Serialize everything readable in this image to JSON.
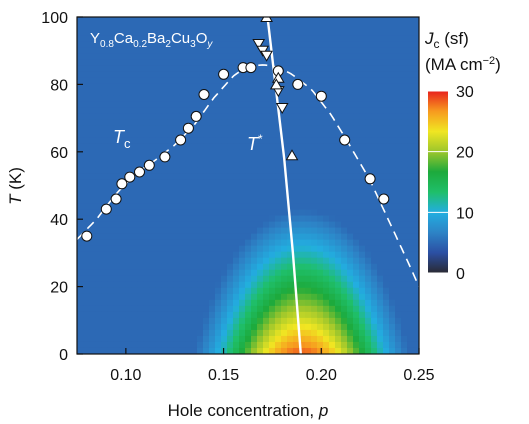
{
  "chart_data": {
    "type": "heatmap",
    "title": "",
    "xlabel_prefix": "Hole concentration, ",
    "xlabel_var": "p",
    "ylabel_var": "T",
    "ylabel_unit": " (K)",
    "xlim": [
      0.075,
      0.25
    ],
    "ylim": [
      0,
      100
    ],
    "x_ticks": [
      "0.10",
      "0.15",
      "0.20",
      "0.25"
    ],
    "y_ticks": [
      "0",
      "20",
      "40",
      "60",
      "80",
      "100"
    ],
    "compound": {
      "parts": [
        {
          "t": "Y",
          "sub": false
        },
        {
          "t": "0.8",
          "sub": true
        },
        {
          "t": "Ca",
          "sub": false
        },
        {
          "t": "0.2",
          "sub": true
        },
        {
          "t": "Ba",
          "sub": false
        },
        {
          "t": "2",
          "sub": true
        },
        {
          "t": "Cu",
          "sub": false
        },
        {
          "t": "3",
          "sub": true
        },
        {
          "t": "O",
          "sub": false
        },
        {
          "t": "y",
          "sub": true
        }
      ]
    },
    "tc_label": {
      "main": "T",
      "sub": "c"
    },
    "tstar_label": {
      "main": "T",
      "sup": "*"
    },
    "colorbar": {
      "title_line1_main": "J",
      "title_line1_sub": "c",
      "title_line1_rest": " (sf)",
      "title_line2_pre": "(MA cm",
      "title_line2_sup": "−2",
      "title_line2_post": ")",
      "ticks": [
        "0",
        "10",
        "20",
        "30"
      ],
      "range": [
        0,
        30
      ],
      "colors": [
        "#2a2a33",
        "#2b4fa3",
        "#2d83c6",
        "#22aee0",
        "#1fbf6a",
        "#1daa3c",
        "#9cc62c",
        "#f0e622",
        "#f79a1f",
        "#e8211d"
      ]
    },
    "series": [
      {
        "marker": "circle",
        "x": [
          0.08,
          0.09,
          0.095,
          0.098,
          0.102,
          0.107,
          0.112,
          0.12,
          0.128,
          0.132,
          0.136,
          0.14,
          0.15,
          0.16,
          0.164,
          0.178,
          0.188,
          0.2,
          0.212,
          0.225,
          0.232
        ],
        "y": [
          35,
          43,
          46,
          50.5,
          52.5,
          54,
          56,
          58.5,
          63.5,
          67,
          70.5,
          77,
          83,
          85,
          85,
          84,
          80,
          76.5,
          63.5,
          52,
          46
        ]
      },
      {
        "marker": "triangle-down",
        "x": [
          0.168,
          0.17,
          0.172,
          0.178,
          0.18
        ],
        "y": [
          92,
          90,
          88.5,
          78,
          73
        ]
      },
      {
        "marker": "triangle-up",
        "x": [
          0.172,
          0.178,
          0.177,
          0.185
        ],
        "y": [
          100,
          82,
          80,
          59
        ]
      }
    ],
    "tc_dome": {
      "style": "dashed",
      "x": [
        0.075,
        0.085,
        0.095,
        0.105,
        0.115,
        0.125,
        0.135,
        0.145,
        0.155,
        0.16,
        0.165,
        0.17,
        0.175,
        0.18,
        0.185,
        0.195,
        0.205,
        0.215,
        0.225,
        0.235,
        0.245,
        0.25
      ],
      "y": [
        34,
        40,
        47.5,
        53.5,
        57.5,
        62,
        68,
        76,
        82.5,
        84.5,
        85.5,
        85.8,
        85.5,
        84.5,
        83,
        78.5,
        71,
        61.5,
        51.5,
        39,
        26.5,
        20
      ]
    },
    "tstar_line": {
      "x": [
        0.1725,
        0.1765,
        0.181,
        0.1855,
        0.1895
      ],
      "y": [
        100,
        80,
        58,
        30,
        0
      ]
    },
    "jc_surface": {
      "peak_x": 0.19,
      "peak_y": 12,
      "peak_value": 30,
      "support_y": 58
    }
  }
}
